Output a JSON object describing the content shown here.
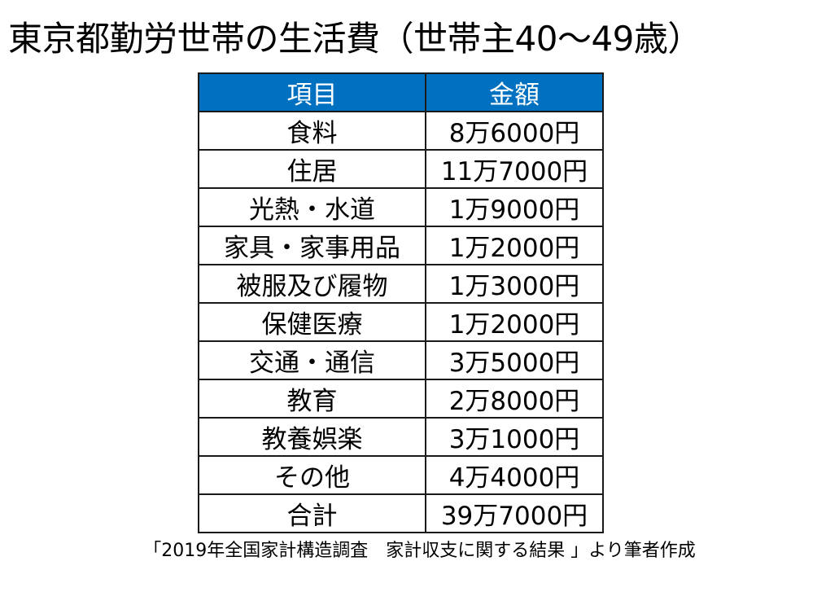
{
  "title": "東京都勤労世帯の生活費（世帯主40～49歳）",
  "table": {
    "headers": [
      "項目",
      "金額"
    ],
    "rows": [
      {
        "item": "食料",
        "amount": "8万6000円"
      },
      {
        "item": "住居",
        "amount": "11万7000円"
      },
      {
        "item": "光熱・水道",
        "amount": "1万9000円"
      },
      {
        "item": "家具・家事用品",
        "amount": "1万2000円"
      },
      {
        "item": "被服及び履物",
        "amount": "1万3000円"
      },
      {
        "item": "保健医療",
        "amount": "1万2000円"
      },
      {
        "item": "交通・通信",
        "amount": "3万5000円"
      },
      {
        "item": "教育",
        "amount": "2万8000円"
      },
      {
        "item": "教養娯楽",
        "amount": "3万1000円"
      },
      {
        "item": "その他",
        "amount": "4万4000円"
      },
      {
        "item": "合計",
        "amount": "39万7000円"
      }
    ]
  },
  "source": "「2019年全国家計構造調査　家計収支に関する結果 」より筆者作成",
  "colors": {
    "header_bg": "#0070c0",
    "header_text": "#ffffff",
    "border": "#1a1a1a"
  }
}
